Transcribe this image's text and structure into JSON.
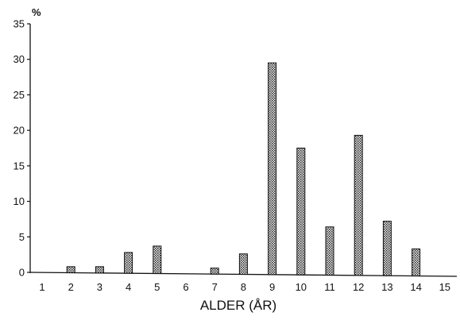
{
  "chart_data": {
    "type": "bar",
    "xlabel": "ALDER (ÅR)",
    "ylabel": "%",
    "categories": [
      "1",
      "2",
      "3",
      "4",
      "5",
      "6",
      "7",
      "8",
      "9",
      "10",
      "11",
      "12",
      "13",
      "14",
      "15"
    ],
    "values": [
      0,
      0.8,
      0.8,
      2.8,
      3.7,
      0,
      0.6,
      2.6,
      29.5,
      17.5,
      6.4,
      19.3,
      7.2,
      3.3,
      0
    ],
    "ylim": [
      0,
      35
    ],
    "yticks": [
      0,
      5,
      10,
      15,
      20,
      25,
      30,
      35
    ],
    "grid": false,
    "legend": "none",
    "bar_fill": "#8a8a8a",
    "bar_edge": "#111111",
    "axis_color": "#111111"
  }
}
